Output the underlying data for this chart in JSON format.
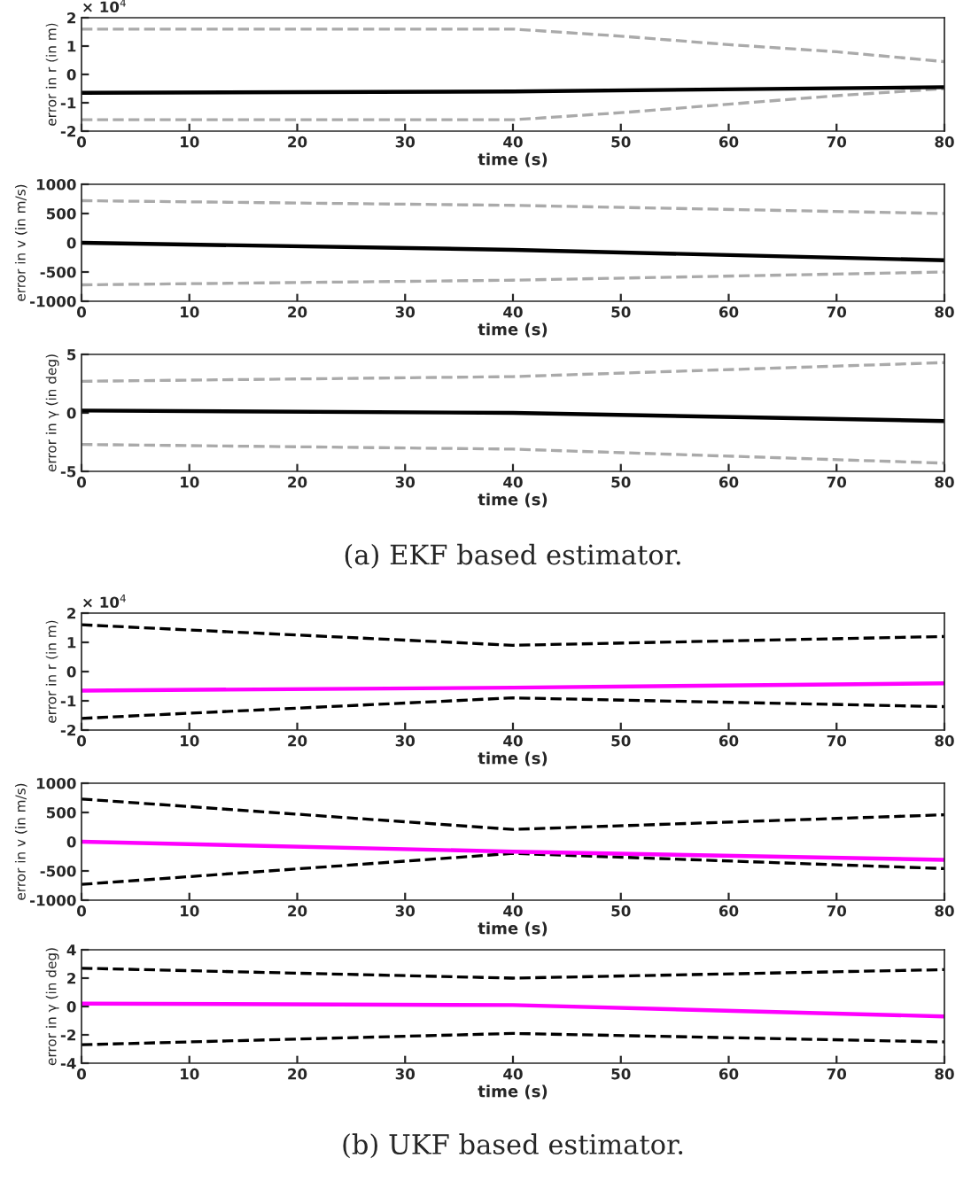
{
  "chart_data": [
    {
      "type": "line",
      "xlabel": "time (s)",
      "ylabel": "error in r (in m)",
      "xlim": [
        0,
        80
      ],
      "xticks": [
        0,
        10,
        20,
        30,
        40,
        50,
        60,
        70,
        80
      ],
      "ylim": [
        -2,
        2
      ],
      "yticks": [
        -2,
        -1,
        0,
        1,
        2
      ],
      "grid": false,
      "legend": false,
      "annotations": [
        "× 10$^{4}$"
      ],
      "series": [
        {
          "color": "#aaaaaa",
          "line_style": "dashed",
          "x": [
            0,
            40,
            50,
            60,
            70,
            80
          ],
          "values": [
            1.6,
            1.6,
            1.35,
            1.05,
            0.8,
            0.45
          ]
        },
        {
          "color": "#aaaaaa",
          "line_style": "dashed",
          "x": [
            0,
            40,
            50,
            60,
            70,
            80
          ],
          "values": [
            -1.6,
            -1.6,
            -1.35,
            -1.05,
            -0.75,
            -0.5
          ]
        },
        {
          "color": "#000000",
          "line_style": "solid",
          "x": [
            0,
            40,
            80
          ],
          "values": [
            -0.65,
            -0.6,
            -0.45
          ]
        }
      ]
    },
    {
      "type": "line",
      "xlabel": "time (s)",
      "ylabel": "error in v (in m/s)",
      "xlim": [
        0,
        80
      ],
      "xticks": [
        0,
        10,
        20,
        30,
        40,
        50,
        60,
        70,
        80
      ],
      "ylim": [
        -1000,
        1000
      ],
      "yticks": [
        -1000,
        -500,
        0,
        500,
        1000
      ],
      "grid": false,
      "legend": false,
      "series": [
        {
          "color": "#aaaaaa",
          "line_style": "dashed",
          "x": [
            0,
            40,
            80
          ],
          "values": [
            720,
            640,
            500
          ]
        },
        {
          "color": "#aaaaaa",
          "line_style": "dashed",
          "x": [
            0,
            40,
            80
          ],
          "values": [
            -720,
            -640,
            -500
          ]
        },
        {
          "color": "#000000",
          "line_style": "solid",
          "x": [
            0,
            40,
            80
          ],
          "values": [
            0,
            -120,
            -300
          ]
        }
      ]
    },
    {
      "type": "line",
      "xlabel": "time (s)",
      "ylabel": "error in γ (in deg)",
      "xlim": [
        0,
        80
      ],
      "xticks": [
        0,
        10,
        20,
        30,
        40,
        50,
        60,
        70,
        80
      ],
      "ylim": [
        -5,
        5
      ],
      "yticks": [
        -5,
        0,
        5
      ],
      "grid": false,
      "legend": false,
      "annotations": [
        "(a) EKF based estimator."
      ],
      "series": [
        {
          "color": "#aaaaaa",
          "line_style": "dashed",
          "x": [
            0,
            40,
            80
          ],
          "values": [
            2.7,
            3.1,
            4.3
          ]
        },
        {
          "color": "#aaaaaa",
          "line_style": "dashed",
          "x": [
            0,
            40,
            80
          ],
          "values": [
            -2.7,
            -3.1,
            -4.3
          ]
        },
        {
          "color": "#000000",
          "line_style": "solid",
          "x": [
            0,
            40,
            80
          ],
          "values": [
            0.2,
            0.0,
            -0.7
          ]
        }
      ]
    },
    {
      "type": "line",
      "xlabel": "time (s)",
      "ylabel": "error in r (in m)",
      "xlim": [
        0,
        80
      ],
      "xticks": [
        0,
        10,
        20,
        30,
        40,
        50,
        60,
        70,
        80
      ],
      "ylim": [
        -2,
        2
      ],
      "yticks": [
        -2,
        -1,
        0,
        1,
        2
      ],
      "grid": false,
      "legend": false,
      "annotations": [
        "× 10$^{4}$"
      ],
      "series": [
        {
          "color": "#000000",
          "line_style": "dashed",
          "x": [
            0,
            40,
            80
          ],
          "values": [
            1.6,
            0.9,
            1.2
          ]
        },
        {
          "color": "#000000",
          "line_style": "dashed",
          "x": [
            0,
            40,
            80
          ],
          "values": [
            -1.6,
            -0.9,
            -1.2
          ]
        },
        {
          "color": "#ff00ff",
          "line_style": "solid",
          "x": [
            0,
            40,
            80
          ],
          "values": [
            -0.65,
            -0.55,
            -0.4
          ]
        }
      ]
    },
    {
      "type": "line",
      "xlabel": "time (s)",
      "ylabel": "error in v (in m/s)",
      "xlim": [
        0,
        80
      ],
      "xticks": [
        0,
        10,
        20,
        30,
        40,
        50,
        60,
        70,
        80
      ],
      "ylim": [
        -1000,
        1000
      ],
      "yticks": [
        -1000,
        -500,
        0,
        500,
        1000
      ],
      "grid": false,
      "legend": false,
      "series": [
        {
          "color": "#000000",
          "line_style": "dashed",
          "x": [
            0,
            40,
            80
          ],
          "values": [
            730,
            210,
            460
          ]
        },
        {
          "color": "#000000",
          "line_style": "dashed",
          "x": [
            0,
            40,
            80
          ],
          "values": [
            -730,
            -200,
            -460
          ]
        },
        {
          "color": "#ff00ff",
          "line_style": "solid",
          "x": [
            0,
            40,
            80
          ],
          "values": [
            0,
            -170,
            -310
          ]
        }
      ]
    },
    {
      "type": "line",
      "xlabel": "time (s)",
      "ylabel": "error in γ (in deg)",
      "xlim": [
        0,
        80
      ],
      "xticks": [
        0,
        10,
        20,
        30,
        40,
        50,
        60,
        70,
        80
      ],
      "ylim": [
        -4,
        4
      ],
      "yticks": [
        -4,
        -2,
        0,
        2,
        4
      ],
      "grid": false,
      "legend": false,
      "annotations": [
        "(b) UKF based estimator."
      ],
      "series": [
        {
          "color": "#000000",
          "line_style": "dashed",
          "x": [
            0,
            40,
            80
          ],
          "values": [
            2.7,
            2.0,
            2.6
          ]
        },
        {
          "color": "#000000",
          "line_style": "dashed",
          "x": [
            0,
            40,
            80
          ],
          "values": [
            -2.7,
            -1.9,
            -2.5
          ]
        },
        {
          "color": "#ff00ff",
          "line_style": "solid",
          "x": [
            0,
            40,
            80
          ],
          "values": [
            0.2,
            0.1,
            -0.7
          ]
        }
      ]
    }
  ]
}
